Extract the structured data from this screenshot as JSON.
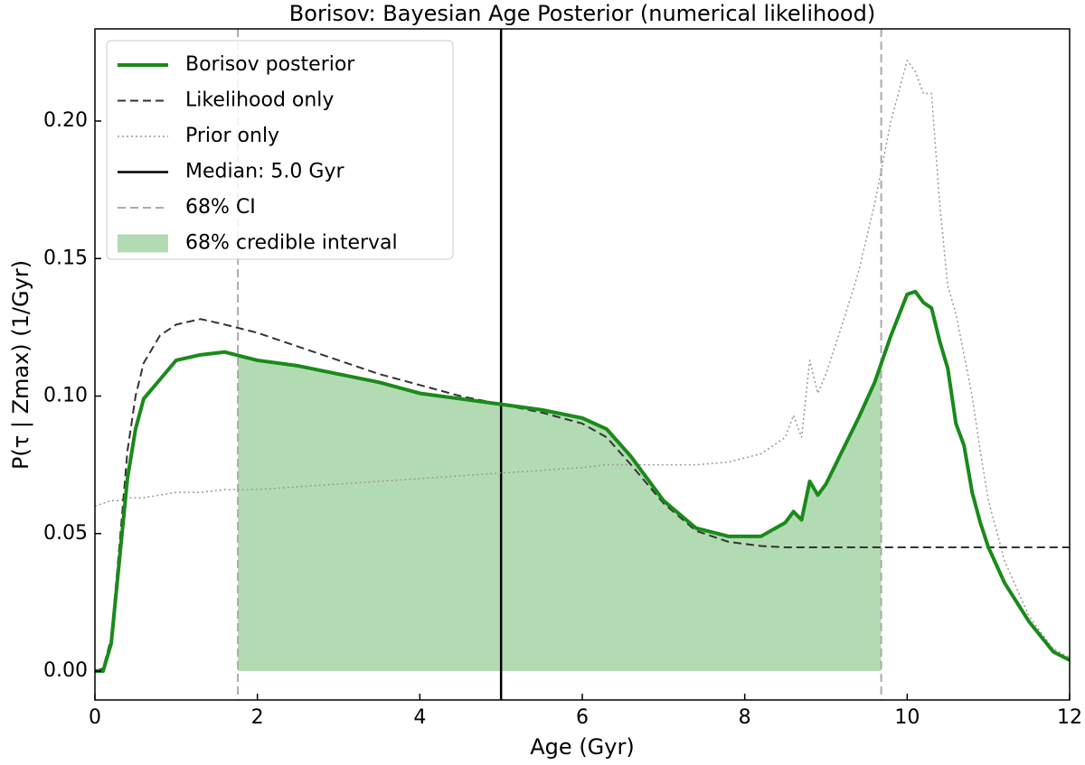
{
  "chart_data": {
    "type": "line",
    "title": "Borisov: Bayesian Age Posterior (numerical likelihood)",
    "xlabel": "Age (Gyr)",
    "ylabel": "P(τ | Zmax) (1/Gyr)",
    "xlim": [
      0,
      12
    ],
    "ylim": [
      -0.0105,
      0.2335
    ],
    "xticks": [
      0,
      2,
      4,
      6,
      8,
      10,
      12
    ],
    "yticks": [
      {
        "value": 0,
        "label": "0.00"
      },
      0.05,
      {
        "value": 0.1,
        "label": "0.10"
      },
      0.15,
      {
        "value": 0.2,
        "label": "0.20"
      }
    ],
    "x": [
      0,
      0.1,
      0.2,
      0.3,
      0.4,
      0.5,
      0.6,
      0.8,
      1.0,
      1.3,
      1.6,
      2.0,
      2.5,
      3.0,
      3.5,
      4.0,
      4.5,
      5.0,
      5.5,
      6.0,
      6.3,
      6.6,
      7.0,
      7.4,
      7.8,
      8.2,
      8.5,
      8.6,
      8.7,
      8.8,
      8.9,
      9.0,
      9.2,
      9.4,
      9.6,
      9.8,
      10.0,
      10.1,
      10.2,
      10.3,
      10.4,
      10.5,
      10.6,
      10.7,
      10.8,
      10.9,
      11.0,
      11.2,
      11.5,
      11.8,
      12.0
    ],
    "series": [
      {
        "name": "Borisov posterior",
        "color": "#1a8a1a",
        "style": "solid",
        "width": 4,
        "values": [
          0,
          0,
          0.01,
          0.04,
          0.07,
          0.088,
          0.099,
          0.106,
          0.113,
          0.115,
          0.116,
          0.113,
          0.111,
          0.108,
          0.105,
          0.101,
          0.099,
          0.097,
          0.095,
          0.092,
          0.088,
          0.078,
          0.062,
          0.052,
          0.049,
          0.049,
          0.054,
          0.058,
          0.055,
          0.069,
          0.064,
          0.068,
          0.08,
          0.092,
          0.105,
          0.122,
          0.137,
          0.138,
          0.134,
          0.132,
          0.12,
          0.11,
          0.09,
          0.082,
          0.065,
          0.054,
          0.045,
          0.032,
          0.018,
          0.007,
          0.004
        ]
      },
      {
        "name": "Likelihood only",
        "color": "#333333",
        "style": "dashed",
        "width": 2,
        "values": [
          0,
          0.001,
          0.012,
          0.045,
          0.08,
          0.1,
          0.112,
          0.122,
          0.126,
          0.128,
          0.126,
          0.123,
          0.118,
          0.113,
          0.108,
          0.104,
          0.1,
          0.097,
          0.094,
          0.09,
          0.085,
          0.075,
          0.061,
          0.051,
          0.047,
          0.0455,
          0.045,
          0.045,
          0.045,
          0.045,
          0.045,
          0.045,
          0.045,
          0.045,
          0.045,
          0.045,
          0.045,
          0.045,
          0.045,
          0.045,
          0.045,
          0.045,
          0.045,
          0.045,
          0.045,
          0.045,
          0.045,
          0.045,
          0.045,
          0.045,
          0.045
        ]
      },
      {
        "name": "Prior only",
        "color": "#999999",
        "style": "dotted",
        "width": 1.5,
        "values": [
          0.06,
          0.061,
          0.062,
          0.062,
          0.063,
          0.063,
          0.063,
          0.064,
          0.065,
          0.065,
          0.066,
          0.066,
          0.067,
          0.068,
          0.069,
          0.07,
          0.071,
          0.072,
          0.073,
          0.074,
          0.075,
          0.075,
          0.075,
          0.075,
          0.076,
          0.079,
          0.085,
          0.093,
          0.085,
          0.113,
          0.101,
          0.108,
          0.126,
          0.145,
          0.17,
          0.2,
          0.222,
          0.218,
          0.21,
          0.21,
          0.17,
          0.14,
          0.13,
          0.115,
          0.1,
          0.08,
          0.062,
          0.04,
          0.02,
          0.008,
          0.005
        ]
      }
    ],
    "median": 5.0,
    "median_name": "Median: 5.0 Gyr",
    "median_color": "#000000",
    "ci": [
      1.76,
      9.68
    ],
    "ci_line_name": "68% CI",
    "ci_line_color": "#aaaaaa",
    "ci_fill_name": "68% credible interval",
    "ci_fill_color": "#b3dbb3",
    "legend": "upper left"
  }
}
